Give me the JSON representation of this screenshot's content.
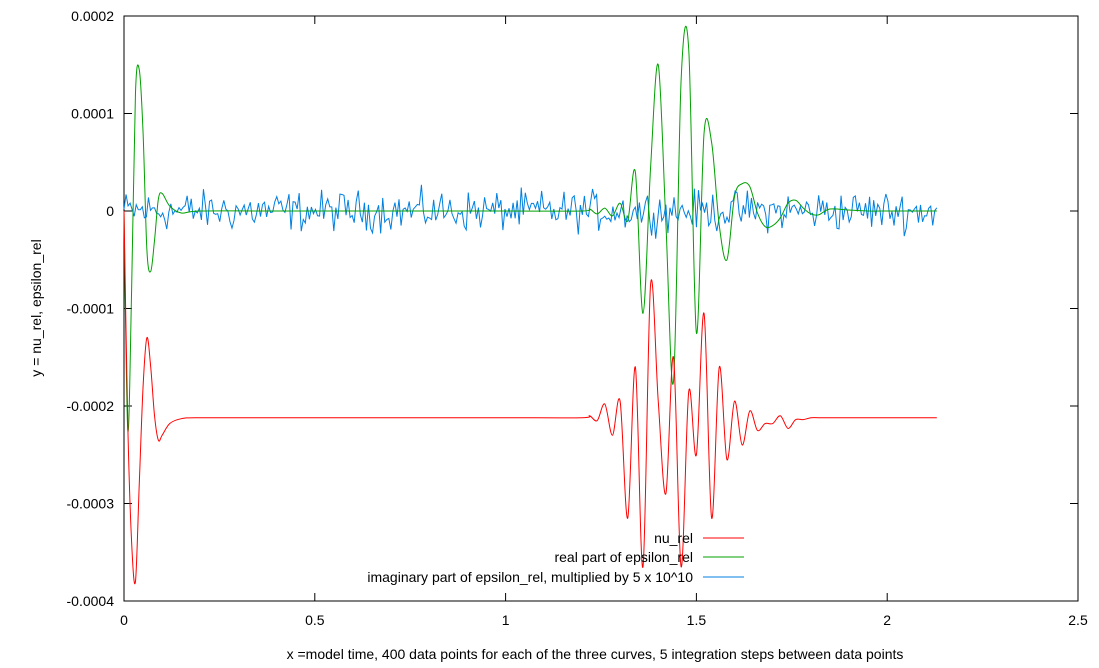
{
  "chart_data": {
    "type": "line",
    "xlabel": "x =model time, 400 data points for each of the three curves, 5 integration steps between data points",
    "ylabel": "y = nu_rel, epsilon_rel",
    "xlim": [
      0,
      2.5
    ],
    "ylim": [
      -0.0004,
      0.0002
    ],
    "x_ticks": [
      "0",
      "0.5",
      "1",
      "1.5",
      "2",
      "2.5"
    ],
    "y_ticks": [
      "0.0002",
      "0.0001",
      "0",
      "-0.0001",
      "-0.0002",
      "-0.0003",
      "-0.0004"
    ],
    "grid": false,
    "legend_position": "bottom-center",
    "series": [
      {
        "name": "nu_rel",
        "color": "#ff0000",
        "x": [
          0.0,
          0.01,
          0.02,
          0.03,
          0.04,
          0.05,
          0.06,
          0.07,
          0.08,
          0.09,
          0.1,
          0.12,
          0.15,
          0.2,
          0.4,
          0.8,
          1.0,
          1.2,
          1.22,
          1.24,
          1.26,
          1.28,
          1.3,
          1.32,
          1.34,
          1.36,
          1.38,
          1.4,
          1.42,
          1.44,
          1.46,
          1.48,
          1.5,
          1.52,
          1.54,
          1.56,
          1.58,
          1.6,
          1.62,
          1.64,
          1.66,
          1.68,
          1.7,
          1.72,
          1.74,
          1.76,
          1.78,
          1.8,
          1.82,
          1.85,
          1.9,
          1.95,
          2.0,
          2.05,
          2.1,
          2.13
        ],
        "y": [
          0.0,
          -0.00022,
          -0.00034,
          -0.00038,
          -0.00028,
          -0.00018,
          -0.00013,
          -0.00016,
          -0.00021,
          -0.000235,
          -0.00023,
          -0.000218,
          -0.000213,
          -0.000212,
          -0.000212,
          -0.000212,
          -0.000212,
          -0.000212,
          -0.00021,
          -0.000215,
          -0.000198,
          -0.00023,
          -0.000195,
          -0.000315,
          -0.00016,
          -0.000365,
          -7.5e-05,
          -0.000195,
          -0.00029,
          -0.00015,
          -0.000365,
          -0.000185,
          -0.00025,
          -0.000105,
          -0.000315,
          -0.00016,
          -0.000255,
          -0.000195,
          -0.00024,
          -0.000205,
          -0.000225,
          -0.000218,
          -0.000218,
          -0.00021,
          -0.000223,
          -0.000214,
          -0.000214,
          -0.000212,
          -0.000212,
          -0.000212,
          -0.000212,
          -0.000212,
          -0.000212,
          -0.000212,
          -0.000212,
          -0.000212
        ]
      },
      {
        "name": "real part of epsilon_rel",
        "color": "#00a000",
        "x": [
          0.0,
          0.01,
          0.02,
          0.03,
          0.04,
          0.05,
          0.06,
          0.07,
          0.08,
          0.09,
          0.1,
          0.12,
          0.15,
          0.2,
          0.4,
          0.8,
          1.0,
          1.2,
          1.22,
          1.24,
          1.26,
          1.28,
          1.3,
          1.32,
          1.34,
          1.36,
          1.38,
          1.4,
          1.42,
          1.44,
          1.46,
          1.48,
          1.5,
          1.52,
          1.54,
          1.56,
          1.58,
          1.6,
          1.62,
          1.64,
          1.66,
          1.68,
          1.7,
          1.72,
          1.74,
          1.76,
          1.78,
          1.8,
          1.82,
          1.85,
          1.9,
          1.95,
          2.0,
          2.05,
          2.1,
          2.13
        ],
        "y": [
          0.0,
          -0.000225,
          -8e-05,
          0.00012,
          0.000145,
          8e-05,
          -4e-05,
          -6.2e-05,
          -3e-05,
          1.2e-05,
          1.8e-05,
          5e-06,
          -2e-06,
          0.0,
          0.0,
          0.0,
          0.0,
          0.0,
          2e-06,
          -3e-06,
          3e-06,
          -5e-06,
          8e-06,
          -1e-05,
          4e-05,
          -0.000105,
          4.5e-05,
          0.00015,
          -1.2e-05,
          -0.000175,
          0.000135,
          0.000165,
          -0.000125,
          7.95e-05,
          7e-05,
          -1.5e-05,
          -5e-05,
          1.5e-05,
          2.8e-05,
          2.5e-05,
          -2e-06,
          -1.6e-05,
          -1.5e-05,
          -7e-06,
          8e-06,
          1.1e-05,
          3e-06,
          -3e-06,
          -4e-06,
          2e-06,
          1e-06,
          0.0,
          0.0,
          0.0,
          0.0,
          0.0
        ]
      },
      {
        "name": "imaginary part of epsilon_rel, multiplied by 5 x 10^10",
        "color": "#0080e0",
        "x_start": 0.0,
        "x_end": 2.13,
        "amplitude": 3e-05
      }
    ]
  }
}
